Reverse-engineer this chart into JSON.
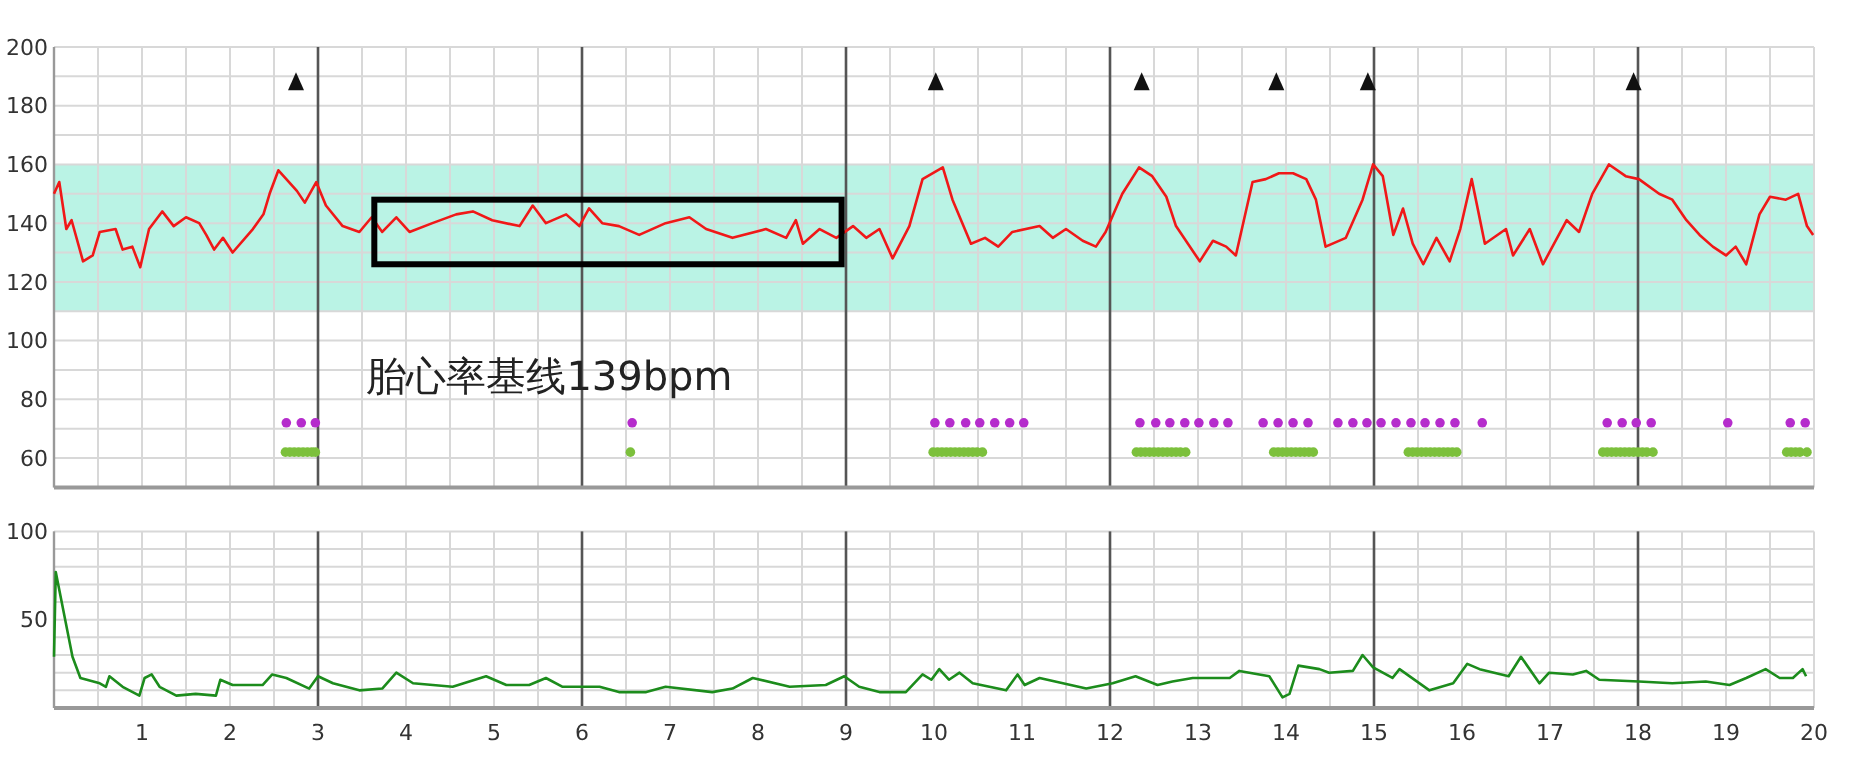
{
  "chart_data": [
    {
      "type": "line",
      "xlim": [
        0,
        20
      ],
      "ylim": [
        50,
        200
      ],
      "tick_labels": "y",
      "grid": true,
      "xticks": [
        0,
        0.5,
        1,
        1.5,
        2,
        2.5,
        3,
        3.5,
        4,
        4.5,
        5,
        5.5,
        6,
        6.5,
        7,
        7.5,
        8,
        8.5,
        9,
        9.5,
        10,
        10.5,
        11,
        11.5,
        12,
        12.5,
        13,
        13.5,
        14,
        14.5,
        15,
        15.5,
        16,
        16.5,
        17,
        17.5,
        18,
        18.5,
        19,
        19.5,
        20
      ],
      "yticks": [
        {
          "value": 50,
          "label": null
        },
        60,
        {
          "value": 70,
          "label": null
        },
        80,
        {
          "value": 90,
          "label": null
        },
        100,
        {
          "value": 110,
          "label": null
        },
        120,
        {
          "value": 130,
          "label": null
        },
        140,
        {
          "value": 150,
          "label": null
        },
        160,
        {
          "value": 170,
          "label": null
        },
        180,
        {
          "value": 190,
          "label": null
        },
        200
      ],
      "bands": [
        {
          "axis": "y",
          "from": 110,
          "to": 160,
          "color": "#b6f2e4"
        }
      ],
      "ref_lines": [
        {
          "axis": "x",
          "value": 3,
          "color": "#555555"
        },
        {
          "axis": "x",
          "value": 6,
          "color": "#555555"
        },
        {
          "axis": "x",
          "value": 9,
          "color": "#555555"
        },
        {
          "axis": "x",
          "value": 12,
          "color": "#555555"
        },
        {
          "axis": "x",
          "value": 15,
          "color": "#555555"
        },
        {
          "axis": "x",
          "value": 18,
          "color": "#555555"
        }
      ],
      "annotations": [
        "胎心率基线139bpm"
      ],
      "series": [
        {
          "type": "line",
          "color": "#f01818",
          "x": [
            0,
            0.06,
            0.14,
            0.2,
            0.33,
            0.44,
            0.52,
            0.7,
            0.78,
            0.89,
            0.98,
            1.08,
            1.23,
            1.36,
            1.5,
            1.65,
            1.73,
            1.82,
            1.92,
            2.03,
            2.26,
            2.38,
            2.45,
            2.55,
            2.64,
            2.76,
            2.85,
            2.98,
            3.09,
            3.28,
            3.47,
            3.61,
            3.73,
            3.89,
            4.04,
            4.3,
            4.57,
            4.76,
            4.98,
            5.29,
            5.44,
            5.59,
            5.82,
            5.97,
            6.08,
            6.23,
            6.42,
            6.65,
            6.95,
            7.22,
            7.41,
            7.71,
            8.09,
            8.32,
            8.43,
            8.51,
            8.7,
            8.89,
            9.08,
            9.23,
            9.38,
            9.53,
            9.72,
            9.87,
            10.1,
            10.21,
            10.42,
            10.58,
            10.73,
            10.89,
            11.2,
            11.35,
            11.5,
            11.69,
            11.84,
            11.95,
            12.14,
            12.33,
            12.48,
            12.64,
            12.75,
            13.02,
            13.17,
            13.32,
            13.43,
            13.62,
            13.77,
            13.92,
            14.08,
            14.23,
            14.34,
            14.45,
            14.68,
            14.87,
            14.99,
            15.1,
            15.22,
            15.33,
            15.44,
            15.56,
            15.71,
            15.86,
            15.98,
            16.11,
            16.26,
            16.5,
            16.58,
            16.77,
            16.92,
            17.19,
            17.33,
            17.48,
            17.67,
            17.86,
            18.01,
            18.24,
            18.39,
            18.55,
            18.7,
            18.85,
            19.0,
            19.11,
            19.23,
            19.38,
            19.5,
            19.68,
            19.82,
            19.92,
            19.99
          ],
          "values": [
            150,
            154,
            138,
            141,
            127,
            129,
            137,
            138,
            131,
            132,
            125,
            138,
            144,
            139,
            142,
            140,
            136,
            131,
            135,
            130,
            138,
            143,
            150,
            158,
            155,
            151,
            147,
            154,
            146,
            139,
            137,
            142,
            137,
            142,
            137,
            140,
            143,
            144,
            141,
            139,
            146,
            140,
            143,
            139,
            145,
            140,
            139,
            136,
            140,
            142,
            138,
            135,
            138,
            135,
            141,
            133,
            138,
            135,
            139,
            135,
            138,
            128,
            139,
            155,
            159,
            148,
            133,
            135,
            132,
            137,
            139,
            135,
            138,
            134,
            132,
            137,
            150,
            159,
            156,
            149,
            139,
            127,
            134,
            132,
            129,
            154,
            155,
            157,
            157,
            155,
            148,
            132,
            135,
            148,
            160,
            156,
            136,
            145,
            133,
            126,
            135,
            127,
            138,
            155,
            133,
            138,
            129,
            138,
            126,
            141,
            137,
            150,
            160,
            156,
            155,
            150,
            148,
            141,
            136,
            132,
            129,
            132,
            126,
            143,
            149,
            148,
            150,
            139,
            136
          ]
        },
        {
          "type": "scatter",
          "marker": "triangle",
          "color": "#111111",
          "x": [
            2.75,
            10.02,
            12.36,
            13.89,
            14.93,
            17.95
          ],
          "values": [
            188,
            188,
            188,
            188,
            188,
            188
          ]
        },
        {
          "type": "scatter",
          "marker": "circle",
          "color": "#b52ccc",
          "x": [
            2.64,
            2.81,
            2.97,
            6.57,
            10.01,
            10.18,
            10.36,
            10.52,
            10.69,
            10.86,
            11.02,
            12.34,
            12.52,
            12.68,
            12.85,
            13.01,
            13.18,
            13.34,
            13.74,
            13.91,
            14.08,
            14.25,
            14.59,
            14.76,
            14.92,
            15.08,
            15.25,
            15.42,
            15.58,
            15.75,
            15.92,
            16.23,
            17.65,
            17.82,
            17.98,
            18.15,
            19.02,
            19.73,
            19.9
          ],
          "values": [
            72,
            72,
            72,
            72,
            72,
            72,
            72,
            72,
            72,
            72,
            72,
            72,
            72,
            72,
            72,
            72,
            72,
            72,
            72,
            72,
            72,
            72,
            72,
            72,
            72,
            72,
            72,
            72,
            72,
            72,
            72,
            72,
            72,
            72,
            72,
            72,
            72,
            72,
            72
          ]
        },
        {
          "type": "scatter",
          "marker": "circle",
          "color": "#7cc03c",
          "x": [
            2.63,
            2.68,
            2.73,
            2.78,
            2.83,
            2.88,
            2.93,
            2.97,
            6.55,
            9.99,
            10.04,
            10.09,
            10.14,
            10.19,
            10.24,
            10.29,
            10.34,
            10.39,
            10.44,
            10.49,
            10.55,
            12.3,
            12.35,
            12.4,
            12.45,
            12.5,
            12.55,
            12.6,
            12.65,
            12.7,
            12.75,
            12.8,
            12.86,
            13.86,
            13.91,
            13.96,
            14.01,
            14.06,
            14.11,
            14.16,
            14.21,
            14.26,
            14.31,
            15.39,
            15.44,
            15.49,
            15.54,
            15.59,
            15.64,
            15.69,
            15.74,
            15.79,
            15.84,
            15.89,
            15.94,
            17.6,
            17.65,
            17.7,
            17.75,
            17.8,
            17.85,
            17.9,
            17.95,
            18.0,
            18.05,
            18.1,
            18.17,
            19.69,
            19.74,
            19.79,
            19.84,
            19.92
          ],
          "values": [
            62,
            62,
            62,
            62,
            62,
            62,
            62,
            62,
            62,
            62,
            62,
            62,
            62,
            62,
            62,
            62,
            62,
            62,
            62,
            62,
            62,
            62,
            62,
            62,
            62,
            62,
            62,
            62,
            62,
            62,
            62,
            62,
            62,
            62,
            62,
            62,
            62,
            62,
            62,
            62,
            62,
            62,
            62,
            62,
            62,
            62,
            62,
            62,
            62,
            62,
            62,
            62,
            62,
            62,
            62,
            62,
            62,
            62,
            62,
            62,
            62,
            62,
            62,
            62,
            62,
            62,
            62,
            62,
            62,
            62,
            62,
            62
          ]
        }
      ]
    },
    {
      "type": "line",
      "xlim": [
        0,
        20
      ],
      "ylim": [
        0,
        100
      ],
      "grid": true,
      "xticks": [
        {
          "value": 0,
          "label": null
        },
        {
          "value": 0.5,
          "label": null
        },
        1,
        {
          "value": 1.5,
          "label": null
        },
        2,
        {
          "value": 2.5,
          "label": null
        },
        3,
        {
          "value": 3.5,
          "label": null
        },
        4,
        {
          "value": 4.5,
          "label": null
        },
        5,
        {
          "value": 5.5,
          "label": null
        },
        6,
        {
          "value": 6.5,
          "label": null
        },
        7,
        {
          "value": 7.5,
          "label": null
        },
        8,
        {
          "value": 8.5,
          "label": null
        },
        9,
        {
          "value": 9.5,
          "label": null
        },
        10,
        {
          "value": 10.5,
          "label": null
        },
        11,
        {
          "value": 11.5,
          "label": null
        },
        12,
        {
          "value": 12.5,
          "label": null
        },
        13,
        {
          "value": 13.5,
          "label": null
        },
        14,
        {
          "value": 14.5,
          "label": null
        },
        15,
        {
          "value": 15.5,
          "label": null
        },
        16,
        {
          "value": 16.5,
          "label": null
        },
        17,
        {
          "value": 17.5,
          "label": null
        },
        18,
        {
          "value": 18.5,
          "label": null
        },
        19,
        {
          "value": 19.5,
          "label": null
        },
        20
      ],
      "yticks": [
        {
          "value": 10,
          "label": null
        },
        {
          "value": 20,
          "label": null
        },
        {
          "value": 30,
          "label": null
        },
        {
          "value": 40,
          "label": null
        },
        50,
        {
          "value": 60,
          "label": null
        },
        {
          "value": 70,
          "label": null
        },
        {
          "value": 80,
          "label": null
        },
        {
          "value": 90,
          "label": null
        },
        100
      ],
      "ref_lines": [
        {
          "axis": "x",
          "value": 3,
          "color": "#555555"
        },
        {
          "axis": "x",
          "value": 6,
          "color": "#555555"
        },
        {
          "axis": "x",
          "value": 9,
          "color": "#555555"
        },
        {
          "axis": "x",
          "value": 12,
          "color": "#555555"
        },
        {
          "axis": "x",
          "value": 15,
          "color": "#555555"
        },
        {
          "axis": "x",
          "value": 18,
          "color": "#555555"
        }
      ],
      "series": [
        {
          "type": "line",
          "color": "#1c8c1c",
          "x": [
            0,
            0.02,
            0.21,
            0.3,
            0.52,
            0.59,
            0.63,
            0.78,
            0.97,
            1.03,
            1.11,
            1.2,
            1.39,
            1.61,
            1.84,
            1.89,
            2.03,
            2.37,
            2.48,
            2.64,
            2.9,
            3.0,
            3.17,
            3.47,
            3.73,
            3.89,
            4.08,
            4.53,
            4.91,
            5.14,
            5.4,
            5.59,
            5.78,
            6.2,
            6.42,
            6.73,
            6.95,
            7.48,
            7.71,
            7.94,
            8.36,
            8.77,
            8.98,
            9.15,
            9.38,
            9.68,
            9.87,
            9.97,
            10.06,
            10.17,
            10.29,
            10.44,
            10.82,
            10.95,
            11.03,
            11.2,
            11.73,
            12.03,
            12.29,
            12.54,
            12.71,
            12.94,
            13.36,
            13.47,
            13.81,
            13.96,
            14.04,
            14.14,
            14.38,
            14.49,
            14.76,
            14.87,
            14.99,
            15.21,
            15.29,
            15.63,
            15.9,
            16.06,
            16.2,
            16.53,
            16.67,
            16.88,
            16.99,
            17.26,
            17.41,
            17.56,
            18.01,
            18.39,
            18.77,
            19.04,
            19.23,
            19.45,
            19.61,
            19.76,
            19.87,
            19.91
          ],
          "values": [
            29,
            77,
            29,
            17,
            14,
            12,
            18,
            12,
            7,
            17,
            19,
            12,
            7,
            8,
            7,
            16,
            13,
            13,
            19,
            17,
            11,
            18,
            14,
            10,
            11,
            20,
            14,
            12,
            18,
            13,
            13,
            17,
            12,
            12,
            9,
            9,
            12,
            9,
            11,
            17,
            12,
            13,
            18,
            12,
            9,
            9,
            19,
            16,
            22,
            16,
            20,
            14,
            10,
            19,
            13,
            17,
            11,
            14,
            18,
            13,
            15,
            17,
            17,
            21,
            18,
            6,
            8,
            24,
            22,
            20,
            21,
            30,
            23,
            17,
            22,
            10,
            14,
            25,
            22,
            18,
            29,
            14,
            20,
            19,
            21,
            16,
            15,
            14,
            15,
            13,
            17,
            22,
            17,
            17,
            22,
            18
          ]
        }
      ]
    }
  ]
}
